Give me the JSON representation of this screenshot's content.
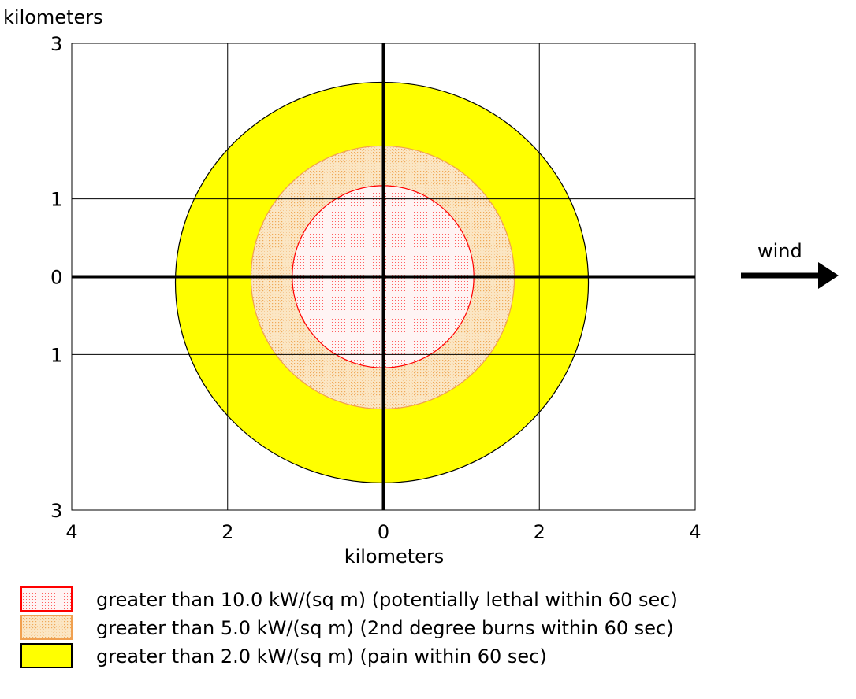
{
  "chart_data": {
    "type": "area",
    "x_label": "kilometers",
    "y_label": "kilometers",
    "x_range": [
      -4,
      4
    ],
    "y_range": [
      -3,
      3
    ],
    "x_ticks": [
      {
        "value": -4,
        "label": "4"
      },
      {
        "value": -2,
        "label": "2"
      },
      {
        "value": 0,
        "label": "0"
      },
      {
        "value": 2,
        "label": "2"
      },
      {
        "value": 4,
        "label": "4"
      }
    ],
    "y_ticks": [
      {
        "value": 3,
        "label": "3"
      },
      {
        "value": 1,
        "label": "1"
      },
      {
        "value": 0,
        "label": "0"
      },
      {
        "value": -1,
        "label": "1"
      },
      {
        "value": -3,
        "label": "3"
      }
    ],
    "gridlines": {
      "x": [
        -2,
        2
      ],
      "y": [
        1,
        -1
      ]
    },
    "grid": true,
    "wind_label": "wind",
    "wind_direction": "east",
    "zones": [
      {
        "name": "greater than 2.0 kW/(sq m) (pain within 60 sec)",
        "x_min": -2.67,
        "x_max": 2.63,
        "y_min": -2.65,
        "y_max": 2.5,
        "fill": "#ffff00",
        "stroke": "#000000",
        "pattern": "solid"
      },
      {
        "name": "greater than 5.0 kW/(sq m) (2nd degree burns within 60 sec)",
        "x_min": -1.7,
        "x_max": 1.68,
        "y_min": -1.7,
        "y_max": 1.68,
        "fill": "#f8d8a8",
        "stroke": "#f0a050",
        "pattern": "dots"
      },
      {
        "name": "greater than 10.0 kW/(sq m) (potentially lethal within 60 sec)",
        "x_min": -1.17,
        "x_max": 1.16,
        "y_min": -1.17,
        "y_max": 1.17,
        "fill": "#fff0f0",
        "stroke": "#ff0000",
        "pattern": "dots"
      }
    ],
    "legend": [
      {
        "label": "greater than 10.0 kW/(sq m) (potentially lethal within 60 sec)",
        "fill": "#fff0f0",
        "stroke": "#ff0000",
        "pattern": "dots"
      },
      {
        "label": "greater than 5.0 kW/(sq m) (2nd degree burns within 60 sec)",
        "fill": "#f8d8a8",
        "stroke": "#f0a050",
        "pattern": "dots"
      },
      {
        "label": "greater than 2.0 kW/(sq m) (pain within 60 sec)",
        "fill": "#ffff00",
        "stroke": "#000000",
        "pattern": "solid"
      }
    ],
    "legend_position": "bottom"
  }
}
